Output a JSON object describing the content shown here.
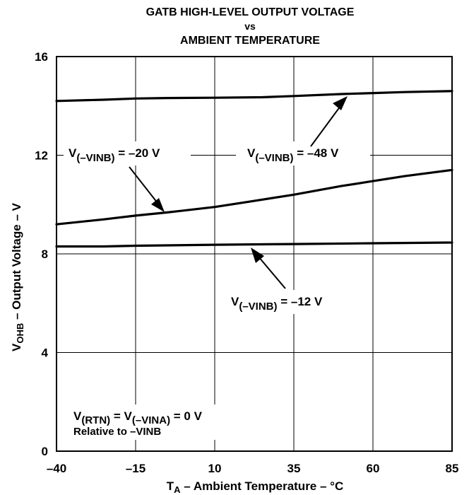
{
  "chart_data": {
    "type": "line",
    "title_lines": [
      "GATB HIGH-LEVEL OUTPUT VOLTAGE",
      "vs",
      "AMBIENT TEMPERATURE"
    ],
    "xlabel": {
      "main": "T",
      "sub": "A",
      "rest": " – Ambient Temperature – °C"
    },
    "ylabel": {
      "main": "V",
      "sub": "OHB",
      "rest": " – Output Voltage – V"
    },
    "xlim": [
      -40,
      85
    ],
    "ylim": [
      0,
      16
    ],
    "xticks": [
      -40,
      -15,
      10,
      35,
      60,
      85
    ],
    "yticks": [
      0,
      4,
      8,
      12,
      16
    ],
    "xtick_labels": [
      "–40",
      "–15",
      "10",
      "35",
      "60",
      "85"
    ],
    "ytick_labels": [
      "0",
      "4",
      "8",
      "12",
      "16"
    ],
    "grid": true,
    "series": [
      {
        "name": {
          "main": "V",
          "sub": "(–VINB)",
          "rest": " = –48 V"
        },
        "x": [
          -40,
          -25,
          -15,
          -5,
          10,
          25,
          35,
          50,
          60,
          70,
          85
        ],
        "y": [
          14.2,
          14.25,
          14.3,
          14.32,
          14.33,
          14.35,
          14.4,
          14.48,
          14.52,
          14.56,
          14.6
        ]
      },
      {
        "name": {
          "main": "V",
          "sub": "(–VINB)",
          "rest": " = –20 V"
        },
        "x": [
          -40,
          -25,
          -15,
          -5,
          10,
          20,
          35,
          50,
          60,
          70,
          85
        ],
        "y": [
          9.2,
          9.4,
          9.55,
          9.68,
          9.9,
          10.1,
          10.4,
          10.75,
          10.95,
          11.15,
          11.4
        ]
      },
      {
        "name": {
          "main": "V",
          "sub": "(–VINB)",
          "rest": " = –12 V"
        },
        "x": [
          -40,
          -25,
          -15,
          10,
          35,
          60,
          85
        ],
        "y": [
          8.3,
          8.3,
          8.33,
          8.37,
          8.4,
          8.43,
          8.46
        ]
      }
    ],
    "condition": {
      "line1": {
        "a": "V",
        "a_sub": "(RTN)",
        "b": " = V",
        "b_sub": "(–VINA)",
        "c": " = 0 V"
      },
      "line2": "Relative to –VINB"
    }
  }
}
